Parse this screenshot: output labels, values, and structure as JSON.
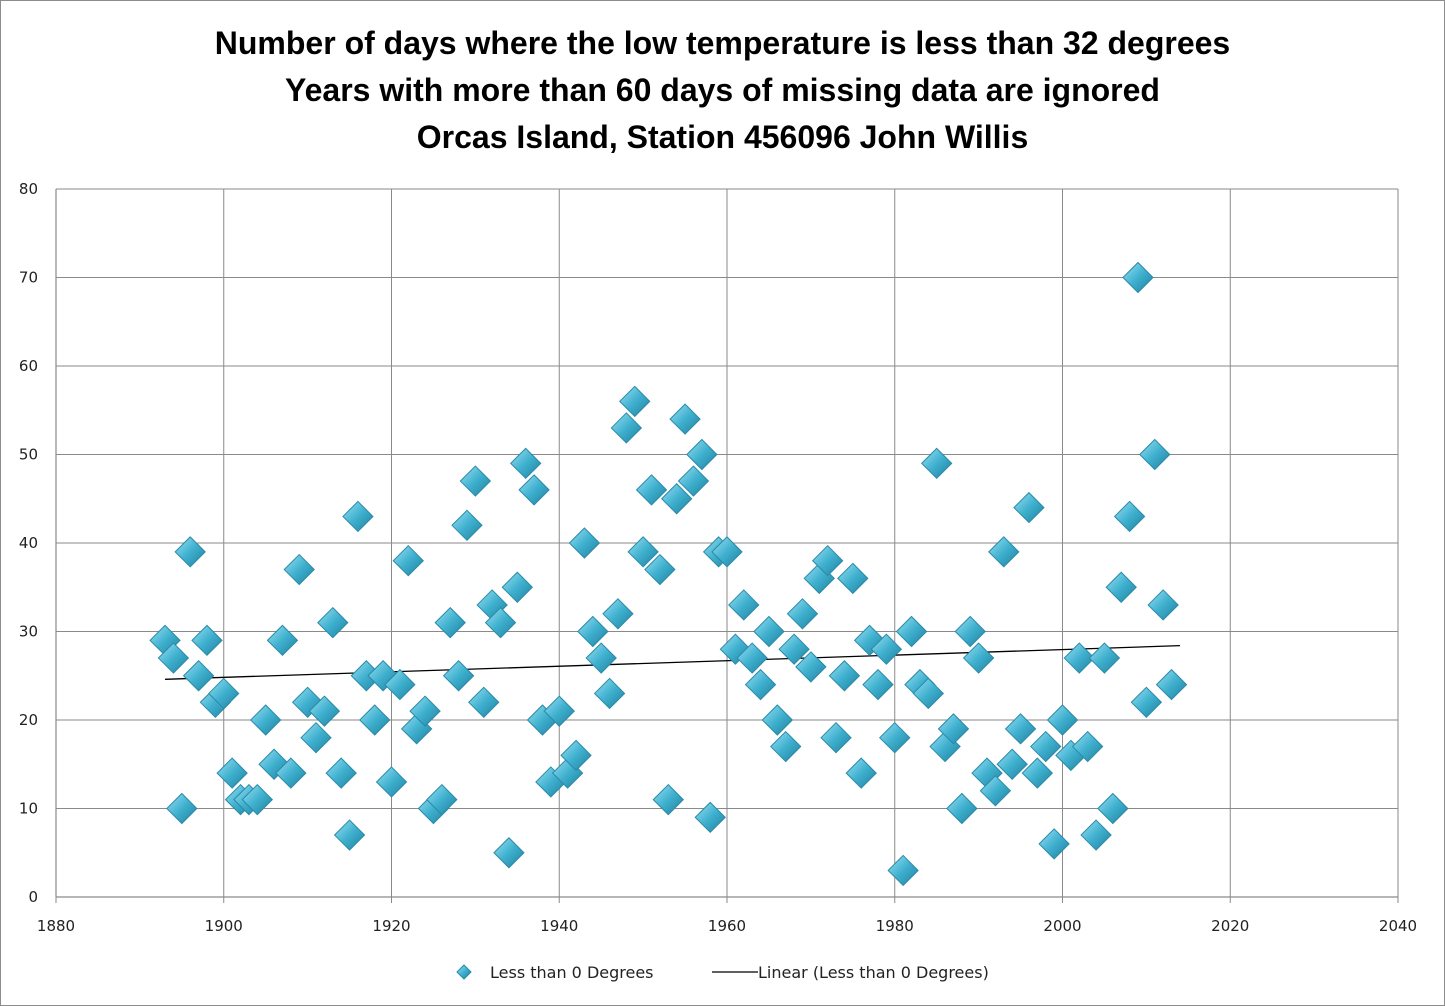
{
  "chart_data": {
    "type": "scatter",
    "title_lines": [
      "Number of days where the low temperature is less than 32 degrees",
      "Years with more than 60 days of missing data are ignored",
      "Orcas Island, Station 456096 John Willis"
    ],
    "xlabel": "",
    "ylabel": "",
    "xlim": [
      1880,
      2040
    ],
    "ylim": [
      0,
      80
    ],
    "xticks": [
      1880,
      1900,
      1920,
      1940,
      1960,
      1980,
      2000,
      2020,
      2040
    ],
    "yticks": [
      0,
      10,
      20,
      30,
      40,
      50,
      60,
      70,
      80
    ],
    "grid": true,
    "legend_position": "bottom",
    "series": [
      {
        "name": "Less than 0 Degrees",
        "marker": "diamond",
        "color": "#3fb0cf",
        "points": [
          [
            1893,
            29
          ],
          [
            1894,
            27
          ],
          [
            1895,
            10
          ],
          [
            1896,
            39
          ],
          [
            1897,
            25
          ],
          [
            1898,
            29
          ],
          [
            1899,
            22
          ],
          [
            1900,
            23
          ],
          [
            1901,
            14
          ],
          [
            1902,
            11
          ],
          [
            1903,
            11
          ],
          [
            1904,
            11
          ],
          [
            1905,
            20
          ],
          [
            1906,
            15
          ],
          [
            1907,
            29
          ],
          [
            1908,
            14
          ],
          [
            1909,
            37
          ],
          [
            1910,
            22
          ],
          [
            1911,
            18
          ],
          [
            1912,
            21
          ],
          [
            1913,
            31
          ],
          [
            1914,
            14
          ],
          [
            1915,
            7
          ],
          [
            1916,
            43
          ],
          [
            1917,
            25
          ],
          [
            1918,
            20
          ],
          [
            1919,
            25
          ],
          [
            1920,
            13
          ],
          [
            1921,
            24
          ],
          [
            1922,
            38
          ],
          [
            1923,
            19
          ],
          [
            1924,
            21
          ],
          [
            1925,
            10
          ],
          [
            1926,
            11
          ],
          [
            1927,
            31
          ],
          [
            1928,
            25
          ],
          [
            1929,
            42
          ],
          [
            1930,
            47
          ],
          [
            1931,
            22
          ],
          [
            1932,
            33
          ],
          [
            1933,
            31
          ],
          [
            1934,
            5
          ],
          [
            1935,
            35
          ],
          [
            1936,
            49
          ],
          [
            1937,
            46
          ],
          [
            1938,
            20
          ],
          [
            1939,
            13
          ],
          [
            1940,
            21
          ],
          [
            1941,
            14
          ],
          [
            1942,
            16
          ],
          [
            1943,
            40
          ],
          [
            1944,
            30
          ],
          [
            1945,
            27
          ],
          [
            1946,
            23
          ],
          [
            1947,
            32
          ],
          [
            1948,
            53
          ],
          [
            1949,
            56
          ],
          [
            1950,
            39
          ],
          [
            1951,
            46
          ],
          [
            1952,
            37
          ],
          [
            1953,
            11
          ],
          [
            1954,
            45
          ],
          [
            1955,
            54
          ],
          [
            1956,
            47
          ],
          [
            1957,
            50
          ],
          [
            1958,
            9
          ],
          [
            1959,
            39
          ],
          [
            1960,
            39
          ],
          [
            1961,
            28
          ],
          [
            1962,
            33
          ],
          [
            1963,
            27
          ],
          [
            1964,
            24
          ],
          [
            1965,
            30
          ],
          [
            1966,
            20
          ],
          [
            1967,
            17
          ],
          [
            1968,
            28
          ],
          [
            1969,
            32
          ],
          [
            1970,
            26
          ],
          [
            1971,
            36
          ],
          [
            1972,
            38
          ],
          [
            1973,
            18
          ],
          [
            1974,
            25
          ],
          [
            1975,
            36
          ],
          [
            1976,
            14
          ],
          [
            1977,
            29
          ],
          [
            1978,
            24
          ],
          [
            1979,
            28
          ],
          [
            1980,
            18
          ],
          [
            1981,
            3
          ],
          [
            1982,
            30
          ],
          [
            1983,
            24
          ],
          [
            1984,
            23
          ],
          [
            1985,
            49
          ],
          [
            1986,
            17
          ],
          [
            1987,
            19
          ],
          [
            1988,
            10
          ],
          [
            1989,
            30
          ],
          [
            1990,
            27
          ],
          [
            1991,
            14
          ],
          [
            1992,
            12
          ],
          [
            1993,
            39
          ],
          [
            1994,
            15
          ],
          [
            1995,
            19
          ],
          [
            1996,
            44
          ],
          [
            1997,
            14
          ],
          [
            1998,
            17
          ],
          [
            1999,
            6
          ],
          [
            2000,
            20
          ],
          [
            2001,
            16
          ],
          [
            2002,
            27
          ],
          [
            2003,
            17
          ],
          [
            2004,
            7
          ],
          [
            2005,
            27
          ],
          [
            2006,
            10
          ],
          [
            2007,
            35
          ],
          [
            2008,
            43
          ],
          [
            2009,
            70
          ],
          [
            2010,
            22
          ],
          [
            2011,
            50
          ],
          [
            2012,
            33
          ],
          [
            2013,
            24
          ]
        ]
      },
      {
        "name": "Linear (Less than 0 Degrees)",
        "type": "line",
        "color": "#000000",
        "points": [
          [
            1893,
            24.6
          ],
          [
            2014,
            28.4
          ]
        ]
      }
    ]
  }
}
